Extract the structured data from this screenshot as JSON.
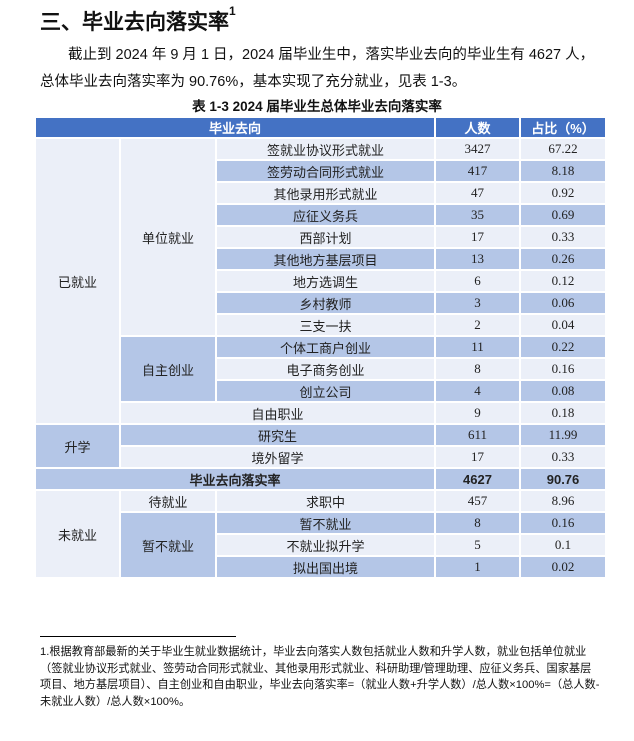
{
  "heading": {
    "text": "三、毕业去向落实率",
    "sup": "1"
  },
  "paragraph": "截止到 2024 年 9 月 1 日，2024 届毕业生中，落实毕业去向的毕业生有 4627 人，总体毕业去向落实率为 90.76%，基本实现了充分就业，见表 1-3。",
  "table": {
    "caption": "表 1-3   2024 届毕业生总体毕业去向落实率",
    "headers": [
      "毕业去向",
      "人数",
      "占比（%）"
    ],
    "groups": {
      "employed": "已就业",
      "unit": "单位就业",
      "self": "自主创业",
      "further": "升学",
      "total": "毕业去向落实率",
      "unemployed": "未就业",
      "waiting": "待就业",
      "notyet": "暂不就业"
    },
    "rows": [
      {
        "item": "签就业协议形式就业",
        "count": "3427",
        "pct": "67.22"
      },
      {
        "item": "签劳动合同形式就业",
        "count": "417",
        "pct": "8.18"
      },
      {
        "item": "其他录用形式就业",
        "count": "47",
        "pct": "0.92"
      },
      {
        "item": "应征义务兵",
        "count": "35",
        "pct": "0.69"
      },
      {
        "item": "西部计划",
        "count": "17",
        "pct": "0.33"
      },
      {
        "item": "其他地方基层项目",
        "count": "13",
        "pct": "0.26"
      },
      {
        "item": "地方选调生",
        "count": "6",
        "pct": "0.12"
      },
      {
        "item": "乡村教师",
        "count": "3",
        "pct": "0.06"
      },
      {
        "item": "三支一扶",
        "count": "2",
        "pct": "0.04"
      },
      {
        "item": "个体工商户创业",
        "count": "11",
        "pct": "0.22"
      },
      {
        "item": "电子商务创业",
        "count": "8",
        "pct": "0.16"
      },
      {
        "item": "创立公司",
        "count": "4",
        "pct": "0.08"
      },
      {
        "item": "自由职业",
        "count": "9",
        "pct": "0.18"
      },
      {
        "item": "研究生",
        "count": "611",
        "pct": "11.99"
      },
      {
        "item": "境外留学",
        "count": "17",
        "pct": "0.33"
      },
      {
        "item": "毕业去向落实率",
        "count": "4627",
        "pct": "90.76"
      },
      {
        "item": "求职中",
        "count": "457",
        "pct": "8.96"
      },
      {
        "item": "暂不就业",
        "count": "8",
        "pct": "0.16"
      },
      {
        "item": "不就业拟升学",
        "count": "5",
        "pct": "0.1"
      },
      {
        "item": "拟出国出境",
        "count": "1",
        "pct": "0.02"
      }
    ]
  },
  "footnote": "1.根据教育部最新的关于毕业生就业数据统计，毕业去向落实人数包括就业人数和升学人数，就业包括单位就业（签就业协议形式就业、签劳动合同形式就业、其他录用形式就业、科研助理/管理助理、应征义务兵、国家基层项目、地方基层项目）、自主创业和自由职业，毕业去向落实率=（就业人数+升学人数）/总人数×100%=（总人数-未就业人数）/总人数×100%。",
  "colors": {
    "header": "#4472C4",
    "band_dark": "#B4C6E7",
    "band_light": "#EBEFF8"
  }
}
